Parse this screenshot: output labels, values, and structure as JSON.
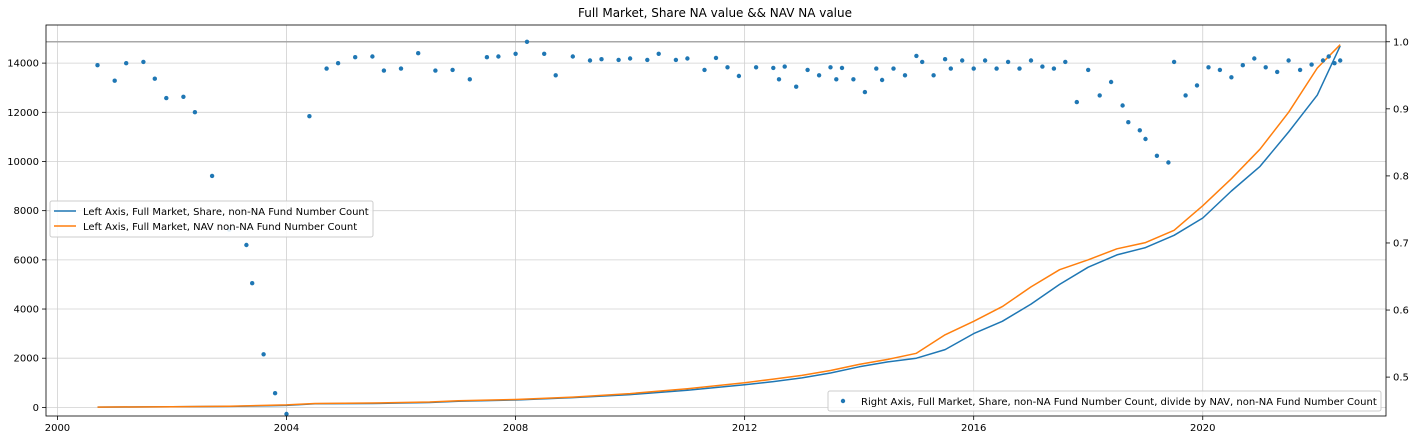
{
  "chart_data": {
    "type": "line",
    "title": "Full Market, Share NA value && NAV NA value",
    "xlabel": "",
    "ylabel": "",
    "grid": true,
    "x_ticks": [
      "2000",
      "2004",
      "2008",
      "2012",
      "2016",
      "2020"
    ],
    "y_left_ticks": [
      "0",
      "2000",
      "4000",
      "6000",
      "8000",
      "10000",
      "12000",
      "14000"
    ],
    "y_right_ticks": [
      "0.5",
      "0.6",
      "0.7",
      "0.8",
      "0.9",
      "1.0"
    ],
    "xlim": [
      1999.8,
      2023.2
    ],
    "ylim_left": [
      -350,
      15550
    ],
    "ylim_right": [
      0.442,
      1.025
    ],
    "reference_line_right": 1.0,
    "legend_left": {
      "position": "center-left",
      "entries": [
        "Left Axis, Full Market, Share, non-NA Fund Number Count",
        "Left Axis, Full Market, NAV non-NA Fund Number Count"
      ]
    },
    "legend_right": {
      "position": "lower-right",
      "entries": [
        "Right Axis, Full Market, Share, non-NA Fund Number Count, divide by NAV, non-NA Fund Number Count"
      ]
    },
    "series": [
      {
        "name": "Left Axis, Full Market, Share, non-NA Fund Number Count",
        "axis": "left",
        "style": "line",
        "color": "#1f77b4",
        "points": [
          [
            2000.7,
            10
          ],
          [
            2002.0,
            25
          ],
          [
            2003.0,
            40
          ],
          [
            2004.0,
            80
          ],
          [
            2004.5,
            150
          ],
          [
            2005.5,
            160
          ],
          [
            2006.5,
            200
          ],
          [
            2007.0,
            250
          ],
          [
            2008.0,
            300
          ],
          [
            2009.0,
            400
          ],
          [
            2010.0,
            520
          ],
          [
            2011.0,
            700
          ],
          [
            2012.0,
            920
          ],
          [
            2012.5,
            1050
          ],
          [
            2013.0,
            1200
          ],
          [
            2013.5,
            1400
          ],
          [
            2014.0,
            1650
          ],
          [
            2014.5,
            1850
          ],
          [
            2015.0,
            2000
          ],
          [
            2015.5,
            2350
          ],
          [
            2016.0,
            3000
          ],
          [
            2016.5,
            3500
          ],
          [
            2017.0,
            4200
          ],
          [
            2017.5,
            5000
          ],
          [
            2018.0,
            5700
          ],
          [
            2018.5,
            6200
          ],
          [
            2019.0,
            6500
          ],
          [
            2019.5,
            7000
          ],
          [
            2020.0,
            7700
          ],
          [
            2020.5,
            8800
          ],
          [
            2021.0,
            9800
          ],
          [
            2021.5,
            11200
          ],
          [
            2022.0,
            12700
          ],
          [
            2022.4,
            14700
          ]
        ]
      },
      {
        "name": "Left Axis, Full Market, NAV non-NA Fund Number Count",
        "axis": "left",
        "style": "line",
        "color": "#ff7f0e",
        "points": [
          [
            2000.7,
            10
          ],
          [
            2002.0,
            30
          ],
          [
            2003.0,
            50
          ],
          [
            2004.0,
            100
          ],
          [
            2004.5,
            160
          ],
          [
            2005.5,
            180
          ],
          [
            2006.5,
            220
          ],
          [
            2007.0,
            270
          ],
          [
            2008.0,
            320
          ],
          [
            2009.0,
            420
          ],
          [
            2010.0,
            560
          ],
          [
            2011.0,
            760
          ],
          [
            2012.0,
            1000
          ],
          [
            2012.5,
            1150
          ],
          [
            2013.0,
            1300
          ],
          [
            2013.5,
            1500
          ],
          [
            2014.0,
            1750
          ],
          [
            2014.5,
            1950
          ],
          [
            2015.0,
            2200
          ],
          [
            2015.5,
            2950
          ],
          [
            2016.0,
            3500
          ],
          [
            2016.5,
            4100
          ],
          [
            2017.0,
            4900
          ],
          [
            2017.5,
            5600
          ],
          [
            2018.0,
            6000
          ],
          [
            2018.5,
            6450
          ],
          [
            2019.0,
            6700
          ],
          [
            2019.5,
            7200
          ],
          [
            2020.0,
            8200
          ],
          [
            2020.5,
            9300
          ],
          [
            2021.0,
            10500
          ],
          [
            2021.5,
            12000
          ],
          [
            2022.0,
            13800
          ],
          [
            2022.4,
            14750
          ]
        ]
      },
      {
        "name": "Right Axis, Full Market, Share, non-NA Fund Number Count, divide by NAV, non-NA Fund Number Count",
        "axis": "right",
        "style": "scatter",
        "color": "#1f77b4",
        "points": [
          [
            2000.7,
            0.965
          ],
          [
            2001.0,
            0.942
          ],
          [
            2001.2,
            0.968
          ],
          [
            2001.5,
            0.97
          ],
          [
            2001.7,
            0.945
          ],
          [
            2001.9,
            0.916
          ],
          [
            2002.2,
            0.918
          ],
          [
            2002.4,
            0.895
          ],
          [
            2002.7,
            0.8
          ],
          [
            2003.0,
            0.72
          ],
          [
            2003.3,
            0.697
          ],
          [
            2003.4,
            0.64
          ],
          [
            2003.6,
            0.534
          ],
          [
            2003.8,
            0.476
          ],
          [
            2004.0,
            0.445
          ],
          [
            2004.4,
            0.889
          ],
          [
            2004.7,
            0.96
          ],
          [
            2004.9,
            0.968
          ],
          [
            2005.2,
            0.977
          ],
          [
            2005.5,
            0.978
          ],
          [
            2005.7,
            0.957
          ],
          [
            2006.0,
            0.96
          ],
          [
            2006.3,
            0.983
          ],
          [
            2006.6,
            0.957
          ],
          [
            2006.9,
            0.958
          ],
          [
            2007.2,
            0.944
          ],
          [
            2007.5,
            0.977
          ],
          [
            2007.7,
            0.978
          ],
          [
            2008.0,
            0.982
          ],
          [
            2008.2,
            1.0
          ],
          [
            2008.5,
            0.982
          ],
          [
            2008.7,
            0.95
          ],
          [
            2009.0,
            0.978
          ],
          [
            2009.3,
            0.972
          ],
          [
            2009.5,
            0.974
          ],
          [
            2009.8,
            0.973
          ],
          [
            2010.0,
            0.975
          ],
          [
            2010.3,
            0.973
          ],
          [
            2010.5,
            0.982
          ],
          [
            2010.8,
            0.973
          ],
          [
            2011.0,
            0.975
          ],
          [
            2011.3,
            0.958
          ],
          [
            2011.5,
            0.976
          ],
          [
            2011.7,
            0.962
          ],
          [
            2011.9,
            0.949
          ],
          [
            2012.2,
            0.962
          ],
          [
            2012.5,
            0.961
          ],
          [
            2012.6,
            0.944
          ],
          [
            2012.7,
            0.963
          ],
          [
            2012.9,
            0.933
          ],
          [
            2013.1,
            0.958
          ],
          [
            2013.3,
            0.95
          ],
          [
            2013.5,
            0.962
          ],
          [
            2013.6,
            0.944
          ],
          [
            2013.7,
            0.961
          ],
          [
            2013.9,
            0.944
          ],
          [
            2014.1,
            0.925
          ],
          [
            2014.3,
            0.96
          ],
          [
            2014.4,
            0.943
          ],
          [
            2014.6,
            0.96
          ],
          [
            2014.8,
            0.95
          ],
          [
            2015.0,
            0.979
          ],
          [
            2015.1,
            0.97
          ],
          [
            2015.3,
            0.95
          ],
          [
            2015.5,
            0.974
          ],
          [
            2015.6,
            0.96
          ],
          [
            2015.8,
            0.972
          ],
          [
            2016.0,
            0.96
          ],
          [
            2016.2,
            0.972
          ],
          [
            2016.4,
            0.96
          ],
          [
            2016.6,
            0.97
          ],
          [
            2016.8,
            0.96
          ],
          [
            2017.0,
            0.972
          ],
          [
            2017.2,
            0.963
          ],
          [
            2017.4,
            0.96
          ],
          [
            2017.6,
            0.97
          ],
          [
            2017.8,
            0.91
          ],
          [
            2018.0,
            0.958
          ],
          [
            2018.2,
            0.92
          ],
          [
            2018.4,
            0.94
          ],
          [
            2018.6,
            0.905
          ],
          [
            2018.7,
            0.88
          ],
          [
            2018.9,
            0.868
          ],
          [
            2019.0,
            0.855
          ],
          [
            2019.2,
            0.83
          ],
          [
            2019.4,
            0.82
          ],
          [
            2019.5,
            0.97
          ],
          [
            2019.7,
            0.92
          ],
          [
            2019.9,
            0.935
          ],
          [
            2020.1,
            0.962
          ],
          [
            2020.3,
            0.958
          ],
          [
            2020.5,
            0.947
          ],
          [
            2020.7,
            0.965
          ],
          [
            2020.9,
            0.975
          ],
          [
            2021.1,
            0.962
          ],
          [
            2021.3,
            0.955
          ],
          [
            2021.5,
            0.972
          ],
          [
            2021.7,
            0.958
          ],
          [
            2021.9,
            0.966
          ],
          [
            2022.1,
            0.972
          ],
          [
            2022.2,
            0.978
          ],
          [
            2022.3,
            0.968
          ],
          [
            2022.4,
            0.972
          ]
        ]
      }
    ]
  }
}
